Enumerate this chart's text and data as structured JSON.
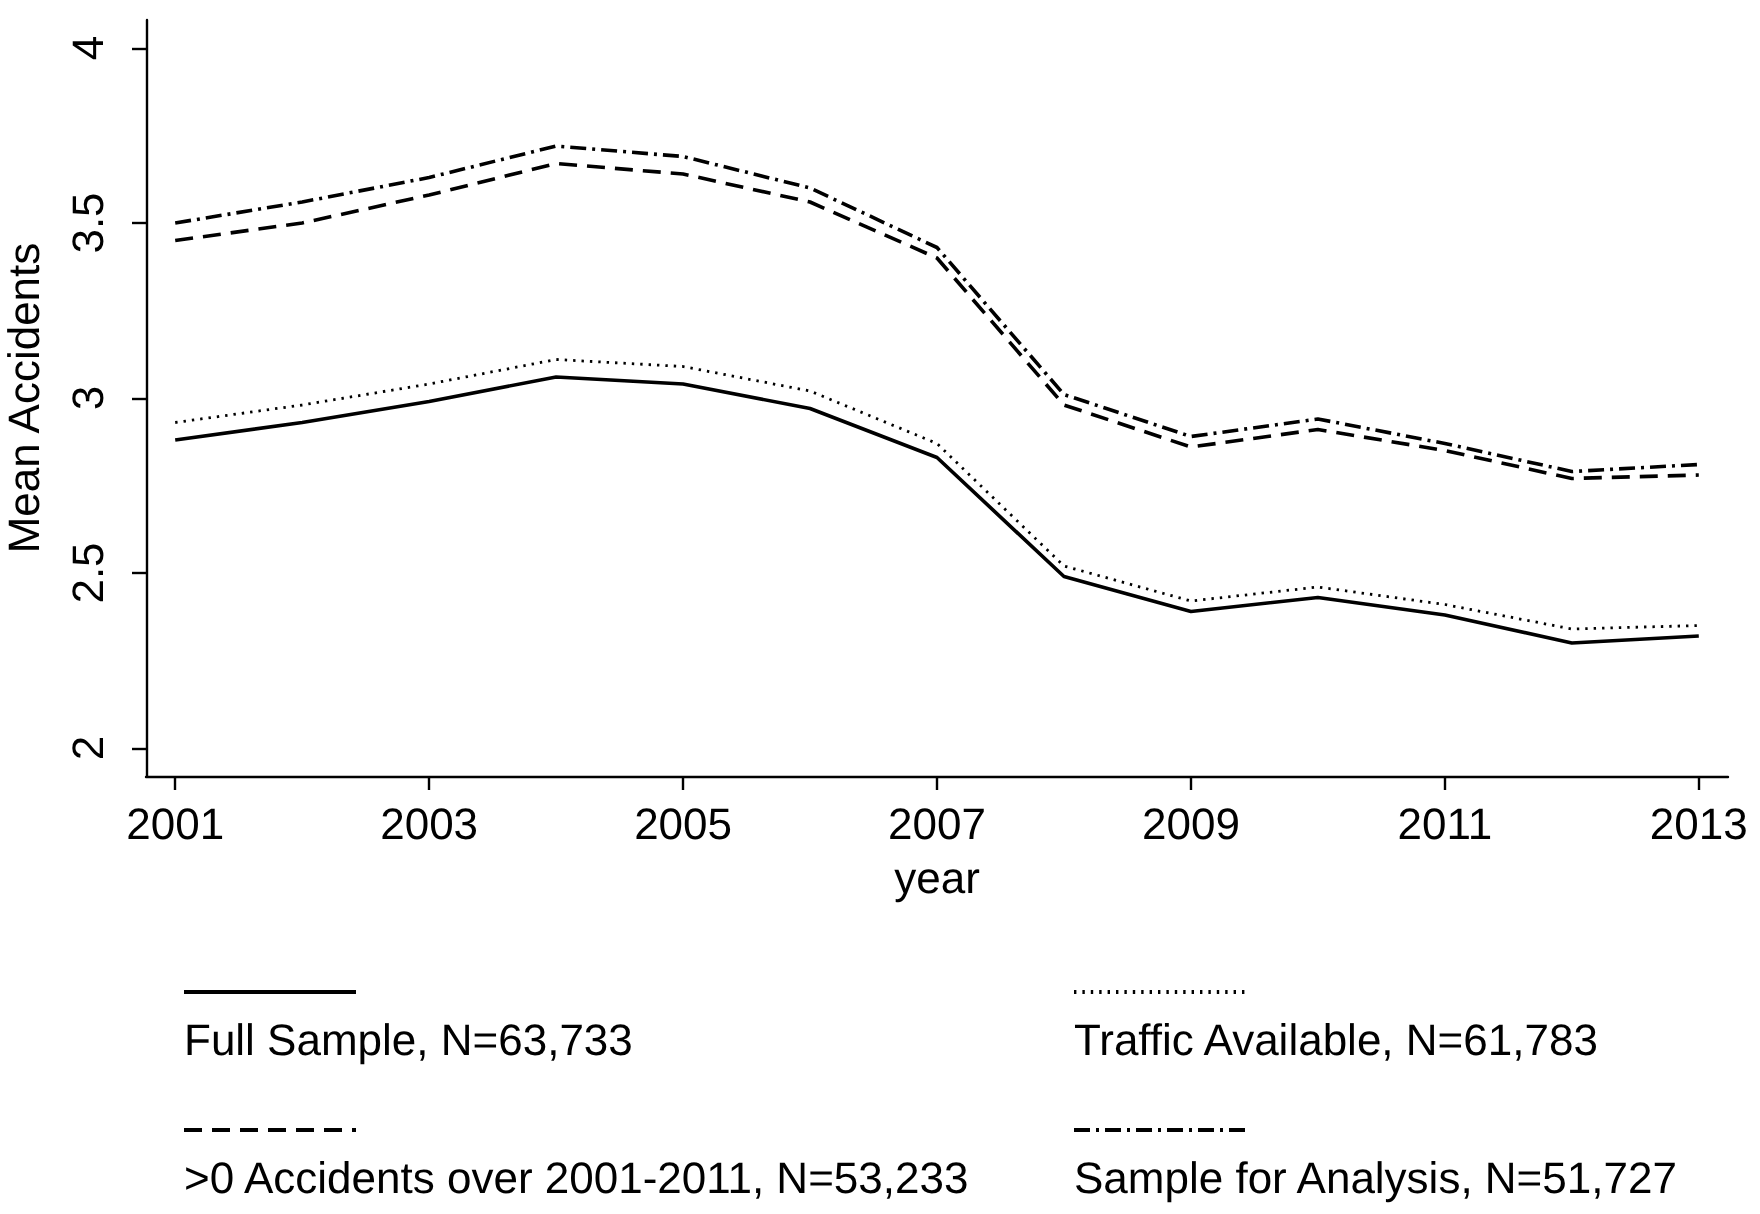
{
  "chart_data": {
    "type": "line",
    "xlabel": "year",
    "ylabel": "Mean Accidents",
    "x": [
      2001,
      2002,
      2003,
      2004,
      2005,
      2006,
      2007,
      2008,
      2009,
      2010,
      2011,
      2012,
      2013
    ],
    "xlim": [
      2000.77,
      2013.23
    ],
    "xticks": [
      2001,
      2003,
      2005,
      2007,
      2009,
      2011,
      2013
    ],
    "ylim": [
      1.92,
      4.08
    ],
    "yticks": [
      2,
      2.5,
      3,
      3.5,
      4
    ],
    "grid": false,
    "legend": "bottom",
    "marker": "none",
    "series": [
      {
        "name": "Full Sample, N=63,733",
        "color": "#000000",
        "line_style": "solid",
        "values": [
          2.88,
          2.93,
          2.99,
          3.06,
          3.04,
          2.97,
          2.83,
          2.49,
          2.39,
          2.43,
          2.38,
          2.3,
          2.32
        ]
      },
      {
        "name": "Traffic Available, N=61,783",
        "color": "#000000",
        "line_style": "dotted",
        "values": [
          2.93,
          2.98,
          3.04,
          3.11,
          3.09,
          3.02,
          2.87,
          2.52,
          2.42,
          2.46,
          2.41,
          2.34,
          2.35
        ]
      },
      {
        "name": ">0 Accidents over 2001-2011, N=53,233",
        "color": "#000000",
        "line_style": "dashed",
        "values": [
          3.45,
          3.5,
          3.58,
          3.67,
          3.64,
          3.56,
          3.4,
          2.98,
          2.86,
          2.91,
          2.85,
          2.77,
          2.78
        ]
      },
      {
        "name": "Sample for Analysis, N=51,727",
        "color": "#000000",
        "line_style": "dashdot",
        "values": [
          3.5,
          3.56,
          3.63,
          3.72,
          3.69,
          3.6,
          3.43,
          3.01,
          2.89,
          2.94,
          2.87,
          2.79,
          2.81
        ]
      }
    ]
  }
}
